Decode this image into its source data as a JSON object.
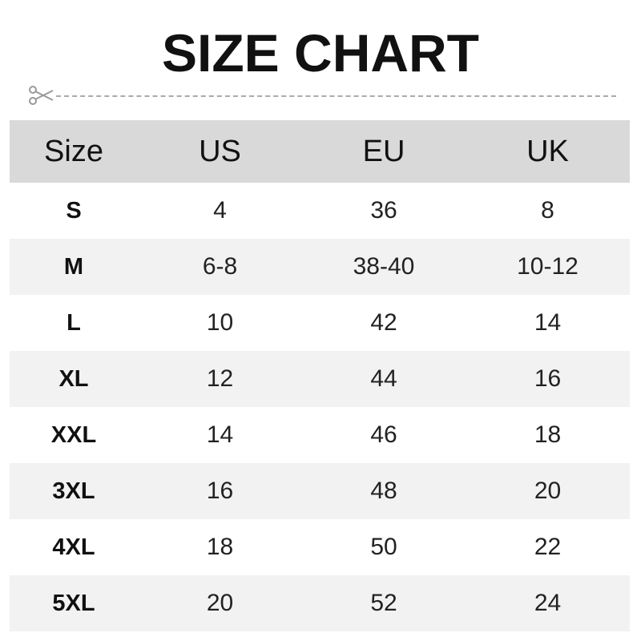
{
  "title": "SIZE CHART",
  "icons": {
    "cut": "scissors-icon"
  },
  "colors": {
    "header_bg": "#d9d9d9",
    "alt_row_bg": "#f2f2f2",
    "dash": "#aaaaaa"
  },
  "table": {
    "headers": [
      "Size",
      "US",
      "EU",
      "UK"
    ],
    "rows": [
      [
        "S",
        "4",
        "36",
        "8"
      ],
      [
        "M",
        "6-8",
        "38-40",
        "10-12"
      ],
      [
        "L",
        "10",
        "42",
        "14"
      ],
      [
        "XL",
        "12",
        "44",
        "16"
      ],
      [
        "XXL",
        "14",
        "46",
        "18"
      ],
      [
        "3XL",
        "16",
        "48",
        "20"
      ],
      [
        "4XL",
        "18",
        "50",
        "22"
      ],
      [
        "5XL",
        "20",
        "52",
        "24"
      ]
    ]
  }
}
